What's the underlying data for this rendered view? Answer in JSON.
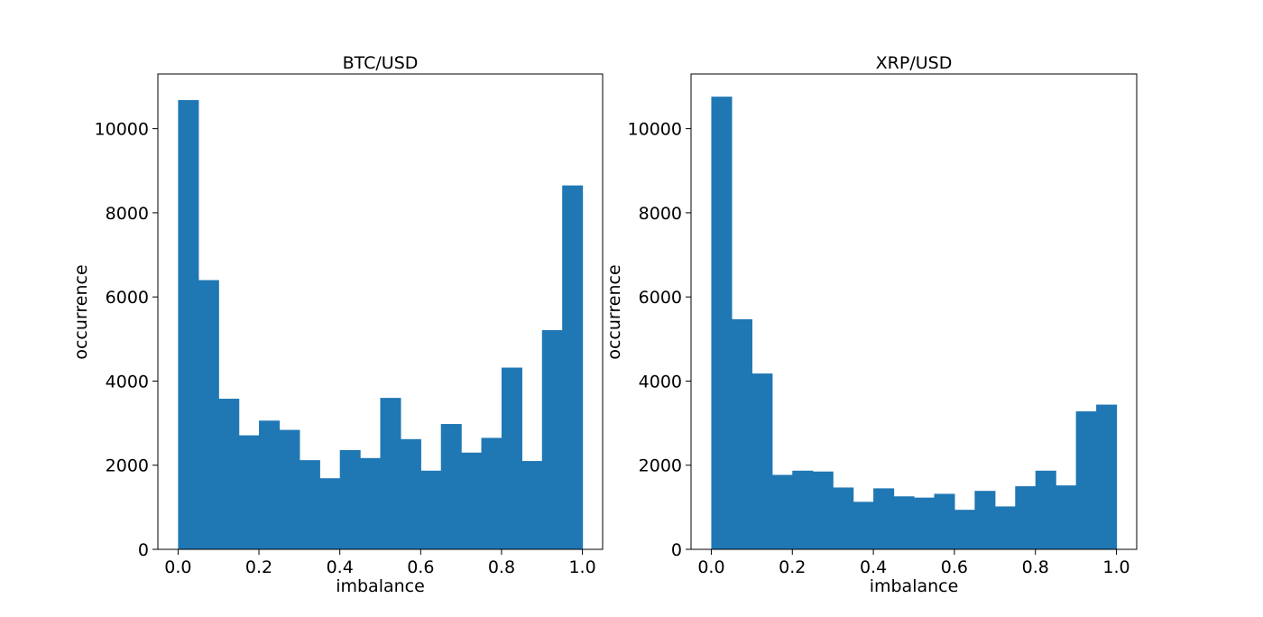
{
  "colors": {
    "bar": "#1f77b4",
    "axes": "#000000",
    "background": "#ffffff"
  },
  "chart_data": [
    {
      "type": "bar",
      "subtype": "histogram",
      "title": "BTC/USD",
      "xlabel": "imbalance",
      "ylabel": "occurrence",
      "xlim": [
        -0.05,
        1.05
      ],
      "ylim": [
        0,
        11300
      ],
      "xticks": [
        0.0,
        0.2,
        0.4,
        0.6,
        0.8,
        1.0
      ],
      "xtick_labels": [
        "0.0",
        "0.2",
        "0.4",
        "0.6",
        "0.8",
        "1.0"
      ],
      "yticks": [
        0,
        2000,
        4000,
        6000,
        8000,
        10000
      ],
      "ytick_labels": [
        "0",
        "2000",
        "4000",
        "6000",
        "8000",
        "10000"
      ],
      "grid": false,
      "bin_edges": [
        0.0,
        0.05,
        0.1,
        0.15,
        0.2,
        0.25,
        0.3,
        0.35,
        0.4,
        0.45,
        0.5,
        0.55,
        0.6,
        0.65,
        0.7,
        0.75,
        0.8,
        0.85,
        0.9,
        0.95,
        1.0
      ],
      "values": [
        10680,
        6400,
        3580,
        2710,
        3060,
        2840,
        2120,
        1690,
        2360,
        2170,
        3600,
        2620,
        1870,
        2980,
        2300,
        2650,
        4320,
        2100,
        5210,
        8650
      ]
    },
    {
      "type": "bar",
      "subtype": "histogram",
      "title": "XRP/USD",
      "xlabel": "imbalance",
      "ylabel": "occurrence",
      "xlim": [
        -0.05,
        1.05
      ],
      "ylim": [
        0,
        11300
      ],
      "xticks": [
        0.0,
        0.2,
        0.4,
        0.6,
        0.8,
        1.0
      ],
      "xtick_labels": [
        "0.0",
        "0.2",
        "0.4",
        "0.6",
        "0.8",
        "1.0"
      ],
      "yticks": [
        0,
        2000,
        4000,
        6000,
        8000,
        10000
      ],
      "ytick_labels": [
        "0",
        "2000",
        "4000",
        "6000",
        "8000",
        "10000"
      ],
      "grid": false,
      "bin_edges": [
        0.0,
        0.05,
        0.1,
        0.15,
        0.2,
        0.25,
        0.3,
        0.35,
        0.4,
        0.45,
        0.5,
        0.55,
        0.6,
        0.65,
        0.7,
        0.75,
        0.8,
        0.85,
        0.9,
        0.95,
        1.0
      ],
      "values": [
        10760,
        5470,
        4180,
        1770,
        1870,
        1850,
        1470,
        1130,
        1450,
        1260,
        1230,
        1320,
        940,
        1390,
        1020,
        1500,
        1870,
        1520,
        3280,
        3440
      ]
    }
  ]
}
